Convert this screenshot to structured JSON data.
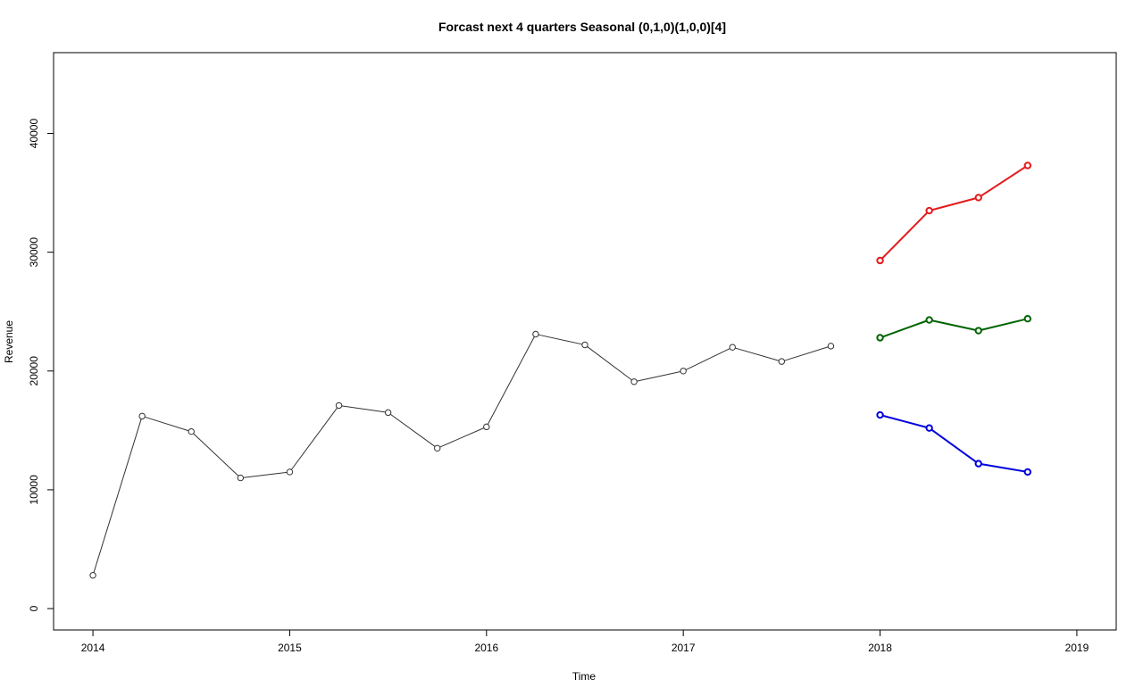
{
  "chart_data": {
    "type": "line",
    "title": "Forcast next 4 quarters Seasonal (0,1,0)(1,0,0)[4]",
    "xlabel": "Time",
    "ylabel": "Revenue",
    "xlim": [
      2013.8,
      2019.2
    ],
    "ylim": [
      -1800,
      46800
    ],
    "x_ticks": [
      2014,
      2015,
      2016,
      2017,
      2018,
      2019
    ],
    "y_ticks": [
      0,
      10000,
      20000,
      30000,
      40000
    ],
    "grid": false,
    "legend": "none",
    "series": [
      {
        "color": "#333333",
        "line_width": 1,
        "x": [
          2014.0,
          2014.25,
          2014.5,
          2014.75,
          2015.0,
          2015.25,
          2015.5,
          2015.75,
          2016.0,
          2016.25,
          2016.5,
          2016.75,
          2017.0,
          2017.25,
          2017.5,
          2017.75
        ],
        "values": [
          2800,
          16200,
          14900,
          11000,
          11500,
          17100,
          16500,
          13500,
          15300,
          23100,
          22200,
          19100,
          20000,
          22000,
          20800,
          22100
        ]
      },
      {
        "color": "#e31a1c",
        "line_width": 2,
        "x": [
          2018.0,
          2018.25,
          2018.5,
          2018.75
        ],
        "values": [
          29300,
          33500,
          34600,
          37300
        ]
      },
      {
        "color": "#006400",
        "line_width": 2,
        "x": [
          2018.0,
          2018.25,
          2018.5,
          2018.75
        ],
        "values": [
          22800,
          24300,
          23400,
          24400
        ]
      },
      {
        "color": "#0000dd",
        "line_width": 2,
        "x": [
          2018.0,
          2018.25,
          2018.5,
          2018.75
        ],
        "values": [
          16300,
          15200,
          12200,
          11500
        ]
      }
    ]
  }
}
